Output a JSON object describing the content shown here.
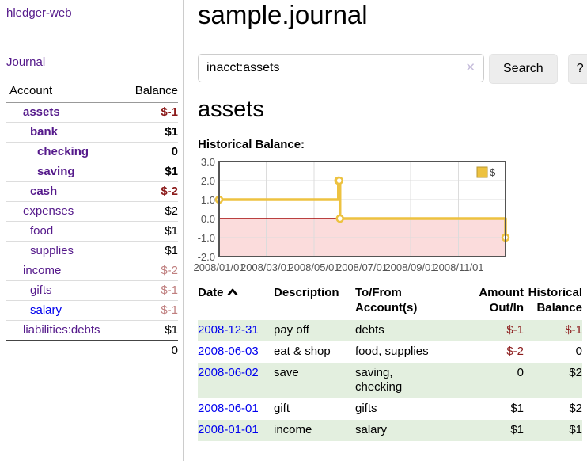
{
  "colors": {
    "purple": "#551a8b",
    "blue": "#0000ee",
    "negative": "#8b1a1a",
    "negative_light": "#c08080",
    "row_shade_green": "#e3efdf",
    "chart_gold": "#edc240",
    "chart_border": "#545454",
    "chart_grid": "#dcdcdc",
    "chart_negative_region": "#fbdcdc",
    "chart_zero_line": "#a40000"
  },
  "sidebar": {
    "brand": "hledger-web",
    "journal_link": "Journal",
    "accounts_table": {
      "headers": {
        "account": "Account",
        "balance": "Balance"
      },
      "rows": [
        {
          "name": "assets",
          "indent": 1,
          "bold": true,
          "link_color": "purple",
          "balance": "$-1",
          "balance_style": "neg"
        },
        {
          "name": "bank",
          "indent": 2,
          "bold": true,
          "link_color": "purple",
          "balance": "$1",
          "balance_style": "pos"
        },
        {
          "name": "checking",
          "indent": 3,
          "bold": true,
          "link_color": "purple",
          "balance": "0",
          "balance_style": "pos"
        },
        {
          "name": "saving",
          "indent": 3,
          "bold": true,
          "link_color": "purple",
          "balance": "$1",
          "balance_style": "pos"
        },
        {
          "name": "cash",
          "indent": 2,
          "bold": true,
          "link_color": "purple",
          "balance": "$-2",
          "balance_style": "neg"
        },
        {
          "name": "expenses",
          "indent": 1,
          "bold": false,
          "link_color": "purple",
          "balance": "$2",
          "balance_style": "pos"
        },
        {
          "name": "food",
          "indent": 2,
          "bold": false,
          "link_color": "purple",
          "balance": "$1",
          "balance_style": "pos"
        },
        {
          "name": "supplies",
          "indent": 2,
          "bold": false,
          "link_color": "purple",
          "balance": "$1",
          "balance_style": "pos"
        },
        {
          "name": "income",
          "indent": 1,
          "bold": false,
          "link_color": "purple",
          "balance": "$-2",
          "balance_style": "neg-light"
        },
        {
          "name": "gifts",
          "indent": 2,
          "bold": false,
          "link_color": "purple",
          "balance": "$-1",
          "balance_style": "neg-light"
        },
        {
          "name": "salary",
          "indent": 2,
          "bold": false,
          "link_color": "blue",
          "balance": "$-1",
          "balance_style": "neg-light"
        },
        {
          "name": "liabilities:debts",
          "indent": 1,
          "bold": false,
          "link_color": "purple",
          "balance": "$1",
          "balance_style": "pos"
        }
      ],
      "total": "0"
    }
  },
  "main": {
    "title": "sample.journal",
    "search": {
      "value": "inacct:assets",
      "clear_icon": "✕",
      "search_button": "Search",
      "help_button": "?"
    },
    "account_heading": "assets",
    "chart_heading": "Historical Balance:",
    "register_table": {
      "headers": {
        "date": "Date",
        "description": "Description",
        "accounts": "To/From\nAccount(s)",
        "amount": "Amount\nOut/In",
        "balance": "Historical\nBalance"
      },
      "sort": {
        "column": "date",
        "direction": "ascending"
      },
      "rows": [
        {
          "date": "2008-12-31",
          "description": "pay off",
          "accounts": "debts",
          "amount": "$-1",
          "amount_neg": true,
          "balance": "$-1",
          "balance_neg": true,
          "shade": true
        },
        {
          "date": "2008-06-03",
          "description": "eat & shop",
          "accounts": "food, supplies",
          "amount": "$-2",
          "amount_neg": true,
          "balance": "0",
          "balance_neg": false,
          "shade": false
        },
        {
          "date": "2008-06-02",
          "description": "save",
          "accounts": "saving,\nchecking",
          "amount": "0",
          "amount_neg": false,
          "balance": "$2",
          "balance_neg": false,
          "shade": true
        },
        {
          "date": "2008-06-01",
          "description": "gift",
          "accounts": "gifts",
          "amount": "$1",
          "amount_neg": false,
          "balance": "$2",
          "balance_neg": false,
          "shade": false
        },
        {
          "date": "2008-01-01",
          "description": "income",
          "accounts": "salary",
          "amount": "$1",
          "amount_neg": false,
          "balance": "$1",
          "balance_neg": false,
          "shade": true
        }
      ]
    }
  },
  "chart_data": {
    "type": "line",
    "title": "Historical Balance",
    "legend": {
      "label": "$",
      "position": "top-right"
    },
    "series": [
      {
        "name": "$",
        "color": "#edc240",
        "step": true,
        "points": [
          {
            "date": "2008-01-01",
            "day": 0,
            "value": 1
          },
          {
            "date": "2008-06-01",
            "day": 152,
            "value": 2
          },
          {
            "date": "2008-06-02",
            "day": 153,
            "value": 2
          },
          {
            "date": "2008-06-03",
            "day": 154,
            "value": 0
          },
          {
            "date": "2008-12-31",
            "day": 365,
            "value": -1
          }
        ]
      }
    ],
    "ylim": [
      -2,
      3
    ],
    "y_ticks": [
      3.0,
      2.0,
      1.0,
      0.0,
      -1.0,
      -2.0
    ],
    "y_tick_labels": [
      "3.0",
      "2.0",
      "1.0",
      "0.0",
      "-1.0",
      "-2.0"
    ],
    "x_range_days": [
      0,
      365
    ],
    "x_ticks": [
      {
        "label": "2008/01/01",
        "day": 0
      },
      {
        "label": "2008/03/01",
        "day": 60
      },
      {
        "label": "2008/05/01",
        "day": 121
      },
      {
        "label": "2008/07/01",
        "day": 182
      },
      {
        "label": "2008/09/01",
        "day": 244
      },
      {
        "label": "2008/11/01",
        "day": 305
      }
    ],
    "grid": true,
    "negative_region_shaded": true
  }
}
